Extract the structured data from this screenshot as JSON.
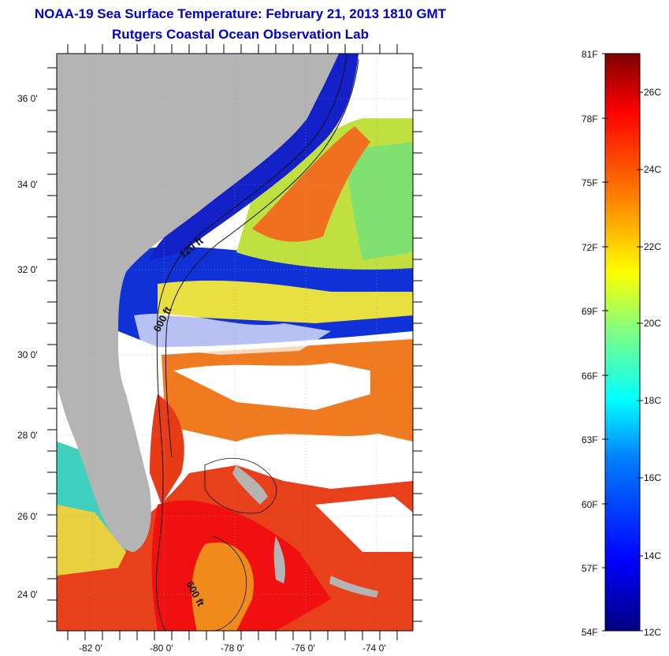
{
  "header": {
    "title": "NOAA-19 Sea Surface Temperature:  February 21, 2013 1810 GMT",
    "subtitle": "Rutgers Coastal Ocean Observation Lab"
  },
  "map": {
    "lat_labels": [
      "36 0'",
      "34 0'",
      "32 0'",
      "30 0'",
      "28 0'",
      "26 0'",
      "24 0'"
    ],
    "lon_labels": [
      "-82 0'",
      "-80 0'",
      "-78 0'",
      "-76 0'",
      "-74 0'"
    ],
    "contour_labels": [
      "120 ft",
      "600 ft",
      "600 ft"
    ],
    "land_color": "#b4b4b4",
    "cloud_color": "#ffffff"
  },
  "colorbar": {
    "fahrenheit_labels": [
      "81F",
      "78F",
      "75F",
      "72F",
      "69F",
      "66F",
      "63F",
      "60F",
      "57F",
      "54F"
    ],
    "celsius_labels": [
      "26C",
      "24C",
      "22C",
      "20C",
      "18C",
      "16C",
      "14C",
      "12C"
    ],
    "colors": [
      "#00007f",
      "#0000ff",
      "#0080ff",
      "#00ffff",
      "#80ff80",
      "#ffff00",
      "#ff8000",
      "#ff0000",
      "#7f0000"
    ]
  }
}
